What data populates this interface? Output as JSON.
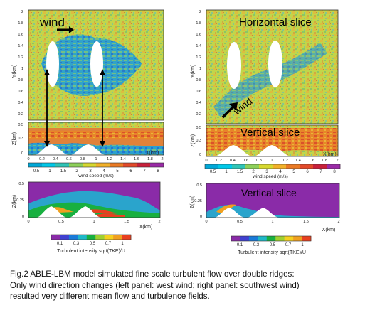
{
  "figure": {
    "left_panel": {
      "wind_label": "wind",
      "xlabel": "X(km)",
      "ylabel_top": "Y(km)",
      "ylabel_vertical": "Z(km)",
      "y_ticks_top": [
        "2",
        "1.8",
        "1.6",
        "1.4",
        "1.2",
        "1",
        "0.8",
        "0.6",
        "0.4",
        "0.2"
      ],
      "y_ticks_vertical": [
        "0.5",
        "0.3",
        "0"
      ],
      "x_ticks": [
        "0",
        "0.2",
        "0.4",
        "0.6",
        "0.8",
        "1",
        "1.2",
        "1.4",
        "1.6",
        "1.8",
        "2"
      ],
      "tke_yticks": [
        "0.5",
        "0.25",
        "0"
      ],
      "tke_xticks": [
        "0",
        "0.5",
        "1",
        "1.5",
        "2"
      ],
      "tke_xlabel": "X(km)",
      "tke_ylabel": "Z(km)"
    },
    "right_panel": {
      "horizontal_slice_label": "Horizontal slice",
      "vertical_slice_label": "Vertical slice",
      "wind_label": "wind",
      "xlabel": "X(km)",
      "ylabel_top": "Y(km)",
      "ylabel_vertical": "Z(km)",
      "tke_label": "Vertical slice",
      "tke_xlabel": "X(km)",
      "tke_ylabel": "Z(km)"
    },
    "wind_colorbar": {
      "ticks": [
        "0.5",
        "1",
        "1.5",
        "2",
        "3",
        "4",
        "5",
        "6",
        "7",
        "8"
      ],
      "label": "wind speed (m/s)",
      "colors": [
        "#00a8d8",
        "#00c8e8",
        "#2ec4b6",
        "#8dd05a",
        "#d6d830",
        "#f2b129",
        "#ea7a24",
        "#e24a2a",
        "#c8203a",
        "#9a2aa6"
      ]
    },
    "tke_colorbar": {
      "ticks": [
        "0.1",
        "0.3",
        "0.5",
        "0.7",
        "1"
      ],
      "label": "Turbulent intensity sqrt(TKE)/U",
      "colors": [
        "#8a2ba8",
        "#4040d0",
        "#1a7ad8",
        "#1fb8c8",
        "#18b040",
        "#a0d030",
        "#f5d020",
        "#f0a020",
        "#e84020"
      ]
    }
  },
  "caption": {
    "line1": "Fig.2 ABLE-LBM model simulated fine scale turbulent flow over double ridges:",
    "line2": "Only wind direction changes (left panel: west wind;  right panel: southwest wind)",
    "line3": "resulted very  different mean flow and turbulence fields."
  }
}
